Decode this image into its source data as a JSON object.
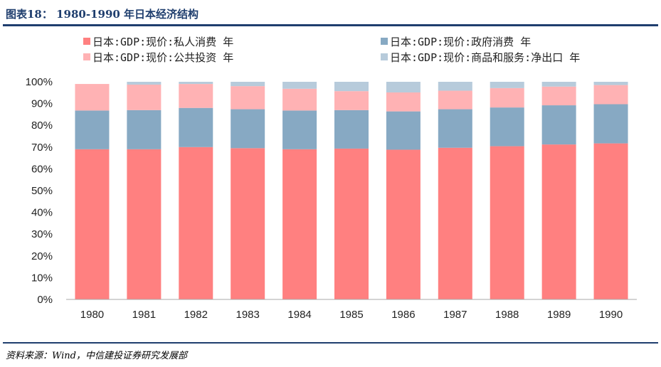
{
  "header": {
    "title": "图表18：  1980-1990 年日本经济结构"
  },
  "footer": {
    "source": "资料来源：Wind，中信建投证券研究发展部"
  },
  "chart_data": {
    "type": "bar",
    "stacked": true,
    "categories": [
      "1980",
      "1981",
      "1982",
      "1983",
      "1984",
      "1985",
      "1986",
      "1987",
      "1988",
      "1989",
      "1990"
    ],
    "ylim": [
      0,
      100
    ],
    "yticks": [
      "0%",
      "10%",
      "20%",
      "30%",
      "40%",
      "50%",
      "60%",
      "70%",
      "80%",
      "90%",
      "100%"
    ],
    "legend_position": "top",
    "series": [
      {
        "name": "日本:GDP:现价:私人消费 年",
        "color": "#ff8080",
        "values": [
          69.0,
          69.0,
          70.0,
          69.5,
          69.0,
          69.3,
          68.8,
          69.7,
          70.4,
          71.2,
          71.7
        ]
      },
      {
        "name": "日本:GDP:现价:政府消费 年",
        "color": "#87a9c3",
        "values": [
          17.8,
          18.0,
          18.0,
          17.9,
          17.8,
          17.7,
          17.6,
          17.7,
          17.8,
          18.0,
          18.0
        ]
      },
      {
        "name": "日本:GDP:现价:公共投资 年",
        "color": "#ffb2b4",
        "values": [
          12.2,
          11.7,
          11.0,
          10.6,
          10.0,
          8.7,
          8.7,
          8.5,
          8.9,
          8.6,
          8.8
        ]
      },
      {
        "name": "日本:GDP:现价:商品和服务:净出口 年",
        "color": "#b7cbdb",
        "values": [
          0.0,
          1.3,
          1.0,
          2.0,
          3.2,
          4.3,
          4.9,
          4.1,
          2.9,
          2.2,
          1.5
        ]
      }
    ]
  }
}
